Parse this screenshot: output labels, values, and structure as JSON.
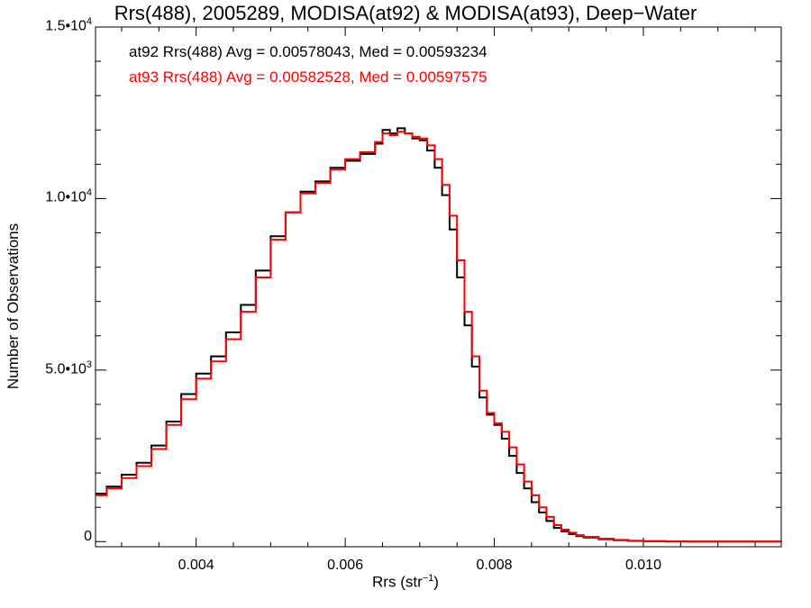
{
  "chart_data": {
    "type": "line",
    "title": "Rrs(488), 2005289, MODISA(at92) & MODISA(at93), Deep−Water",
    "xlabel_main": "Rrs (str",
    "xlabel_sup": "−1",
    "xlabel_end": ")",
    "ylabel": "Number of Observations",
    "xlim": [
      0.00265,
      0.01185
    ],
    "ylim": [
      -150,
      15000
    ],
    "x_ticks": [
      {
        "value": 0.004,
        "label": "0.004"
      },
      {
        "value": 0.006,
        "label": "0.006"
      },
      {
        "value": 0.008,
        "label": "0.008"
      },
      {
        "value": 0.01,
        "label": "0.010"
      }
    ],
    "y_ticks": [
      {
        "value": 0,
        "label": "0",
        "exp": ""
      },
      {
        "value": 5000,
        "label": "5.0•10",
        "exp": "3"
      },
      {
        "value": 10000,
        "label": "1.0•10",
        "exp": "4"
      },
      {
        "value": 15000,
        "label": "1.5•10",
        "exp": "4"
      }
    ],
    "series": [
      {
        "color": "#000000",
        "x": [
          0.00265,
          0.0028,
          0.003,
          0.0032,
          0.0034,
          0.0036,
          0.0038,
          0.004,
          0.0042,
          0.0044,
          0.0046,
          0.0048,
          0.005,
          0.0052,
          0.0054,
          0.0056,
          0.0058,
          0.006,
          0.0062,
          0.0064,
          0.0065,
          0.0066,
          0.0067,
          0.0068,
          0.0069,
          0.007,
          0.0071,
          0.0072,
          0.0073,
          0.0074,
          0.0075,
          0.0076,
          0.0077,
          0.0078,
          0.0079,
          0.008,
          0.0081,
          0.0082,
          0.0083,
          0.0084,
          0.0085,
          0.0086,
          0.0087,
          0.0088,
          0.0089,
          0.009,
          0.0091,
          0.0092,
          0.0094,
          0.0096,
          0.0098,
          0.01,
          0.0103,
          0.0106,
          0.011,
          0.01185
        ],
        "y": [
          1400,
          1600,
          1950,
          2300,
          2800,
          3500,
          4300,
          4900,
          5400,
          6100,
          6900,
          7900,
          8900,
          9600,
          10200,
          10500,
          10900,
          11100,
          11300,
          11600,
          12000,
          11900,
          12050,
          11900,
          11750,
          11700,
          11400,
          10900,
          10100,
          9100,
          7700,
          6300,
          5100,
          4200,
          3700,
          3400,
          3000,
          2500,
          2000,
          1550,
          1150,
          850,
          600,
          400,
          300,
          220,
          160,
          120,
          70,
          40,
          20,
          10,
          5,
          2,
          1,
          0
        ]
      },
      {
        "color": "#ff0000",
        "x": [
          0.00265,
          0.0028,
          0.003,
          0.0032,
          0.0034,
          0.0036,
          0.0038,
          0.004,
          0.0042,
          0.0044,
          0.0046,
          0.0048,
          0.005,
          0.0052,
          0.0054,
          0.0056,
          0.0058,
          0.006,
          0.0062,
          0.0064,
          0.0065,
          0.0066,
          0.0067,
          0.0068,
          0.0069,
          0.007,
          0.0071,
          0.0072,
          0.0073,
          0.0074,
          0.0075,
          0.0076,
          0.0077,
          0.0078,
          0.0079,
          0.008,
          0.0081,
          0.0082,
          0.0083,
          0.0084,
          0.0085,
          0.0086,
          0.0087,
          0.0088,
          0.0089,
          0.009,
          0.0091,
          0.0092,
          0.0094,
          0.0096,
          0.0098,
          0.01,
          0.0103,
          0.0106,
          0.011,
          0.01185
        ],
        "y": [
          1350,
          1550,
          1850,
          2200,
          2700,
          3400,
          4150,
          4750,
          5250,
          5900,
          6700,
          7700,
          8800,
          9600,
          10150,
          10450,
          10850,
          11150,
          11350,
          11650,
          11900,
          11850,
          11950,
          11900,
          11800,
          11750,
          11550,
          11150,
          10400,
          9500,
          8200,
          6700,
          5400,
          4400,
          3750,
          3450,
          3200,
          2750,
          2250,
          1750,
          1350,
          1000,
          720,
          480,
          350,
          260,
          190,
          140,
          85,
          50,
          25,
          12,
          6,
          3,
          1,
          0
        ]
      }
    ],
    "legend": [
      {
        "text": "at92 Rrs(488) Avg = 0.00578043, Med = 0.00593234",
        "color": "#000000"
      },
      {
        "text": "at93 Rrs(488) Avg = 0.00582528, Med = 0.00597575",
        "color": "#ff0000"
      }
    ]
  }
}
